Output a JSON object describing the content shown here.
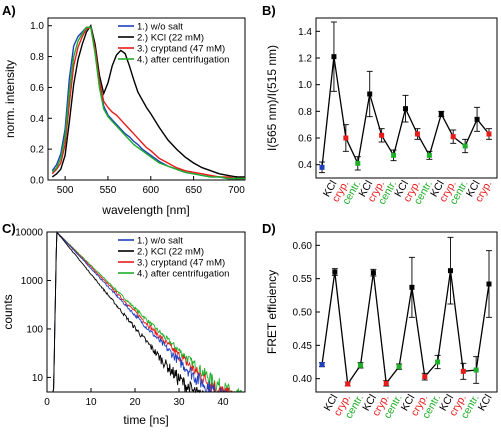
{
  "chart_data": [
    {
      "panel_label": "A)",
      "type": "line",
      "xlabel": "wavelength [nm]",
      "ylabel": "norm. intensity",
      "xlim": [
        480,
        710
      ],
      "ylim": [
        0,
        1.05
      ],
      "xticks": [
        "500",
        "550",
        "600",
        "650",
        "700"
      ],
      "yticks": [
        "0.0",
        "0.2",
        "0.4",
        "0.6",
        "0.8",
        "1.0"
      ],
      "legend_position": "top-right",
      "grid": false,
      "x": [
        485,
        490,
        495,
        500,
        505,
        510,
        515,
        520,
        525,
        530,
        535,
        540,
        545,
        550,
        555,
        560,
        565,
        570,
        575,
        580,
        585,
        590,
        595,
        600,
        610,
        620,
        630,
        640,
        650,
        660,
        670,
        680,
        690,
        700,
        710
      ],
      "series": [
        {
          "name": "1.) w/o salt",
          "color": "#1f3fbf",
          "values": [
            0.06,
            0.1,
            0.17,
            0.33,
            0.66,
            0.87,
            0.93,
            0.96,
            0.99,
            0.99,
            0.83,
            0.62,
            0.48,
            0.42,
            0.39,
            0.36,
            0.33,
            0.3,
            0.28,
            0.25,
            0.23,
            0.2,
            0.18,
            0.16,
            0.12,
            0.09,
            0.07,
            0.05,
            0.04,
            0.03,
            0.02,
            0.02,
            0.01,
            0.01,
            0.01
          ]
        },
        {
          "name": "2.) KCl (22 mM)",
          "color": "#000000",
          "values": [
            0.02,
            0.04,
            0.07,
            0.16,
            0.38,
            0.62,
            0.78,
            0.88,
            0.96,
            1.0,
            0.88,
            0.68,
            0.56,
            0.63,
            0.74,
            0.81,
            0.84,
            0.82,
            0.74,
            0.65,
            0.57,
            0.52,
            0.47,
            0.43,
            0.34,
            0.26,
            0.2,
            0.15,
            0.11,
            0.08,
            0.06,
            0.04,
            0.03,
            0.02,
            0.02
          ]
        },
        {
          "name": "3.) cryptand (47 mM)",
          "color": "#e81b1b",
          "values": [
            0.04,
            0.07,
            0.11,
            0.23,
            0.5,
            0.74,
            0.86,
            0.93,
            0.98,
            0.99,
            0.85,
            0.64,
            0.51,
            0.47,
            0.44,
            0.42,
            0.39,
            0.36,
            0.33,
            0.3,
            0.27,
            0.24,
            0.21,
            0.19,
            0.14,
            0.11,
            0.08,
            0.06,
            0.05,
            0.04,
            0.03,
            0.02,
            0.02,
            0.01,
            0.01
          ]
        },
        {
          "name": "4.) after centrifugation",
          "color": "#1fae28",
          "values": [
            0.05,
            0.08,
            0.14,
            0.28,
            0.58,
            0.8,
            0.9,
            0.95,
            0.99,
            0.99,
            0.82,
            0.6,
            0.46,
            0.41,
            0.38,
            0.35,
            0.32,
            0.29,
            0.26,
            0.23,
            0.21,
            0.19,
            0.17,
            0.15,
            0.11,
            0.09,
            0.07,
            0.05,
            0.04,
            0.03,
            0.02,
            0.02,
            0.01,
            0.01,
            0.01
          ]
        }
      ]
    },
    {
      "panel_label": "B)",
      "type": "line",
      "ylabel": "I(565 nm)/I(515 nm)",
      "ylim": [
        0.3,
        1.5
      ],
      "yticks": [
        "0.4",
        "0.6",
        "0.8",
        "1.0",
        "1.2",
        "1.4"
      ],
      "categories": [
        "KCl",
        "cryp.",
        "centr.",
        "KCl",
        "cryp.",
        "centr.",
        "KCl",
        "cryp.",
        "centr.",
        "KCl",
        "cryp.",
        "centr.",
        "KCl",
        "cryp."
      ],
      "category_colors": [
        "#000000",
        "#e81b1b",
        "#1fae28",
        "#000000",
        "#e81b1b",
        "#1fae28",
        "#000000",
        "#e81b1b",
        "#1fae28",
        "#000000",
        "#e81b1b",
        "#1fae28",
        "#000000",
        "#e81b1b"
      ],
      "initial_point": {
        "value": 0.38,
        "error": 0.04,
        "color": "#1f3fbf"
      },
      "values": [
        1.21,
        0.6,
        0.41,
        0.93,
        0.62,
        0.47,
        0.82,
        0.63,
        0.47,
        0.78,
        0.61,
        0.54,
        0.74,
        0.63
      ],
      "errors": [
        0.26,
        0.1,
        0.05,
        0.17,
        0.05,
        0.04,
        0.1,
        0.04,
        0.03,
        0.02,
        0.05,
        0.05,
        0.09,
        0.04
      ],
      "grid": false
    },
    {
      "panel_label": "C)",
      "type": "line",
      "xlabel": "time [ns]",
      "ylabel": "counts",
      "scale_y": "log",
      "xlim": [
        0,
        45
      ],
      "ylim": [
        5,
        10000
      ],
      "xticks": [
        "0",
        "10",
        "20",
        "30",
        "40"
      ],
      "yticks": [
        "10",
        "100",
        "1000",
        "10000"
      ],
      "legend_position": "top-right",
      "grid": false,
      "series": [
        {
          "name": "1.) w/o salt",
          "color": "#1f3fbf",
          "peak": 10000,
          "tau_ns": 4.5
        },
        {
          "name": "2.) KCl (22 mM)",
          "color": "#000000",
          "peak": 10000,
          "tau_ns": 3.9
        },
        {
          "name": "3.) cryptand (47 mM)",
          "color": "#e81b1b",
          "peak": 10000,
          "tau_ns": 4.7
        },
        {
          "name": "4.) after centrifugation",
          "color": "#1fae28",
          "peak": 10000,
          "tau_ns": 4.9
        }
      ]
    },
    {
      "panel_label": "D)",
      "type": "line",
      "ylabel": "FRET efficiency",
      "ylim": [
        0.38,
        0.62
      ],
      "yticks": [
        "0.40",
        "0.45",
        "0.50",
        "0.55",
        "0.60"
      ],
      "categories": [
        "KCl",
        "cryp.",
        "centr.",
        "KCl",
        "cryp.",
        "centr.",
        "KCl",
        "cryp.",
        "centr.",
        "KCl",
        "cryp.",
        "centr.",
        "KCl"
      ],
      "category_colors": [
        "#000000",
        "#e81b1b",
        "#1fae28",
        "#000000",
        "#e81b1b",
        "#1fae28",
        "#000000",
        "#e81b1b",
        "#1fae28",
        "#000000",
        "#e81b1b",
        "#1fae28",
        "#000000"
      ],
      "initial_point": {
        "value": 0.421,
        "error": 0.003,
        "color": "#1f3fbf"
      },
      "values": [
        0.56,
        0.392,
        0.42,
        0.559,
        0.393,
        0.418,
        0.537,
        0.403,
        0.425,
        0.562,
        0.411,
        0.413,
        0.542
      ],
      "errors": [
        0.005,
        0.003,
        0.004,
        0.005,
        0.004,
        0.004,
        0.045,
        0.005,
        0.01,
        0.05,
        0.012,
        0.02,
        0.05
      ],
      "grid": false
    }
  ]
}
